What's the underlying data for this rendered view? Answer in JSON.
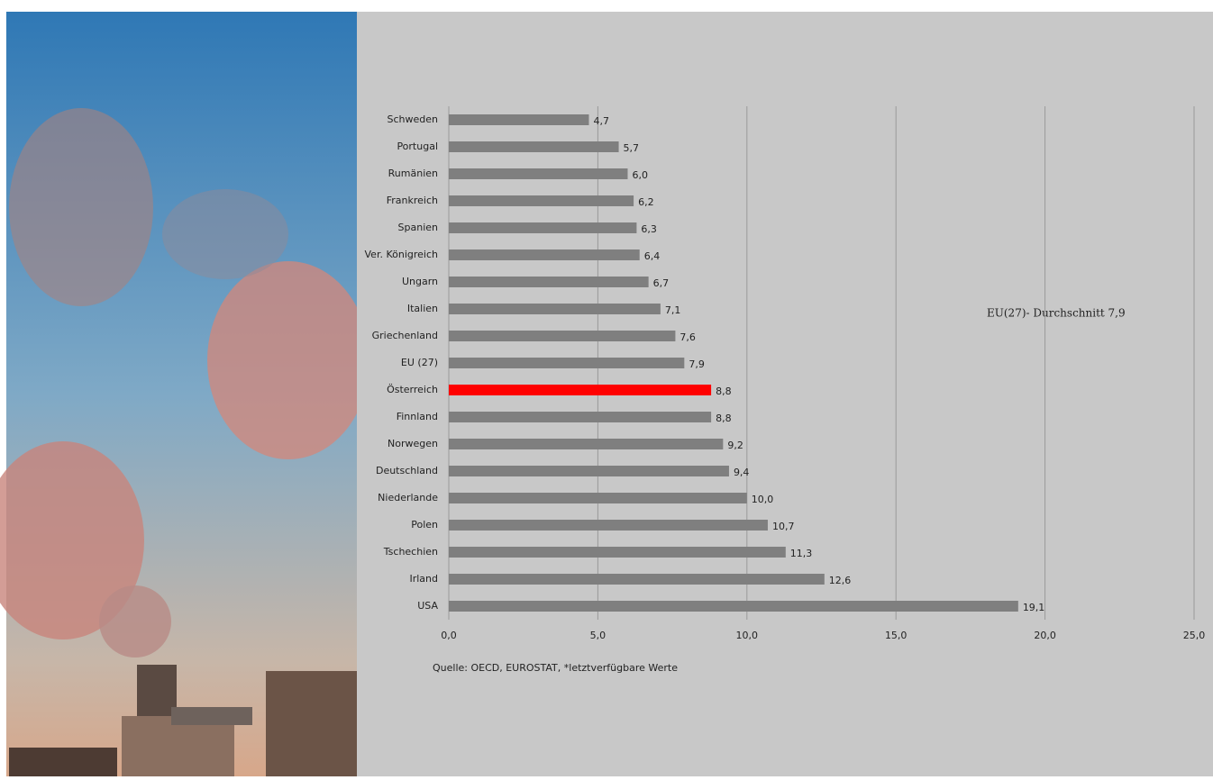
{
  "chart_data": {
    "type": "bar",
    "orientation": "horizontal",
    "categories": [
      "Schweden",
      "Portugal",
      "Rumänien",
      "Frankreich",
      "Spanien",
      "Ver. Königreich",
      "Ungarn",
      "Italien",
      "Griechenland",
      "EU (27)",
      "Österreich",
      "Finnland",
      "Norwegen",
      "Deutschland",
      "Niederlande",
      "Polen",
      "Tschechien",
      "Irland",
      "USA"
    ],
    "values": [
      4.7,
      5.7,
      6.0,
      6.2,
      6.3,
      6.4,
      6.7,
      7.1,
      7.6,
      7.9,
      8.8,
      8.8,
      9.2,
      9.4,
      10.0,
      10.7,
      11.3,
      12.6,
      19.1
    ],
    "value_labels": [
      "4,7",
      "5,7",
      "6,0",
      "6,2",
      "6,3",
      "6,4",
      "6,7",
      "7,1",
      "7,6",
      "7,9",
      "8,8",
      "8,8",
      "9,2",
      "9,4",
      "10,0",
      "10,7",
      "11,3",
      "12,6",
      "19,1"
    ],
    "colors": [
      "#7f7f7f",
      "#7f7f7f",
      "#7f7f7f",
      "#7f7f7f",
      "#7f7f7f",
      "#7f7f7f",
      "#7f7f7f",
      "#7f7f7f",
      "#7f7f7f",
      "#7f7f7f",
      "#ff0000",
      "#7f7f7f",
      "#7f7f7f",
      "#7f7f7f",
      "#7f7f7f",
      "#7f7f7f",
      "#7f7f7f",
      "#7f7f7f",
      "#7f7f7f"
    ],
    "xlim": [
      0,
      25
    ],
    "xticks": [
      {
        "value": 0,
        "label": "0,0"
      },
      {
        "value": 5,
        "label": "5,0"
      },
      {
        "value": 10,
        "label": "10,0"
      },
      {
        "value": 15,
        "label": "15,0"
      },
      {
        "value": 20,
        "label": "20,0"
      },
      {
        "value": 25,
        "label": "25,0"
      }
    ],
    "grid": true,
    "annotation": "EU(27)- Durchschnitt 7,9",
    "source": "Quelle: OECD, EUROSTAT, *letztverfügbare Werte"
  }
}
